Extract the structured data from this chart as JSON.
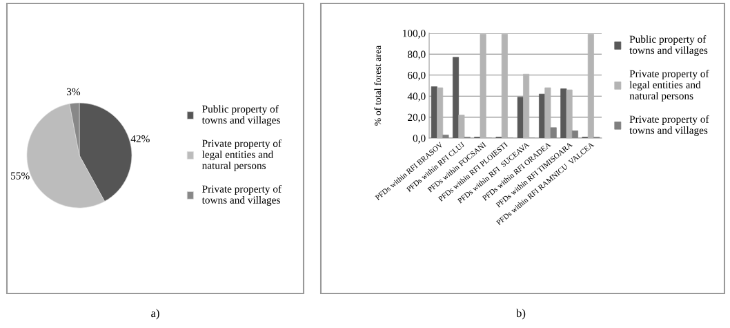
{
  "chart_data": [
    {
      "type": "pie",
      "categories": [
        "Public property of\ntowns and villages",
        "Private property of\nlegal entities and\nnatural persons",
        "Private property of\ntowns and villages"
      ],
      "values": [
        42,
        55,
        3
      ],
      "colors": [
        "#555555",
        "#bcbcbc",
        "#888888"
      ],
      "value_labels": [
        "42%",
        "55%",
        "3%"
      ],
      "legend": "right",
      "annotations": [
        "a)"
      ]
    },
    {
      "type": "bar",
      "categories": [
        "PFDs within RFI BRASOV",
        "PFDs within RFI CLUJ",
        "PFDs within FOCSANI",
        "PFDs within RFI PLOIESTI",
        "PFDs within RFI  SUCEAVA",
        "PFDs within RFI ORADEA",
        "PFDs within RFI TIMISOARA",
        "PFDs within RFI RAMNICU  VALCEA"
      ],
      "ylabel": "% of total forest area",
      "series": [
        {
          "name": "Public property of\ntowns and villages",
          "color": "#595959",
          "values": [
            49,
            77,
            1,
            1,
            39,
            42,
            47,
            1
          ]
        },
        {
          "name": "Private property of\nlegal entities and\nnatural persons",
          "color": "#b4b4b4",
          "values": [
            48,
            22,
            99,
            99,
            61,
            48,
            46,
            99
          ]
        },
        {
          "name": "Private property of\ntowns and villages",
          "color": "#7f7f7f",
          "values": [
            3,
            1,
            0,
            0,
            0,
            10,
            7,
            1
          ]
        }
      ],
      "ylim": [
        0,
        100
      ],
      "yticks": [
        {
          "value": 0,
          "label": "0,0"
        },
        {
          "value": 20,
          "label": "20,0"
        },
        {
          "value": 40,
          "label": "40,0"
        },
        {
          "value": 60,
          "label": "60,0"
        },
        {
          "value": 80,
          "label": "80,0"
        },
        {
          "value": 100,
          "label": "100,0"
        }
      ],
      "grid": "y",
      "legend": "right",
      "annotations": [
        "b)"
      ]
    }
  ]
}
